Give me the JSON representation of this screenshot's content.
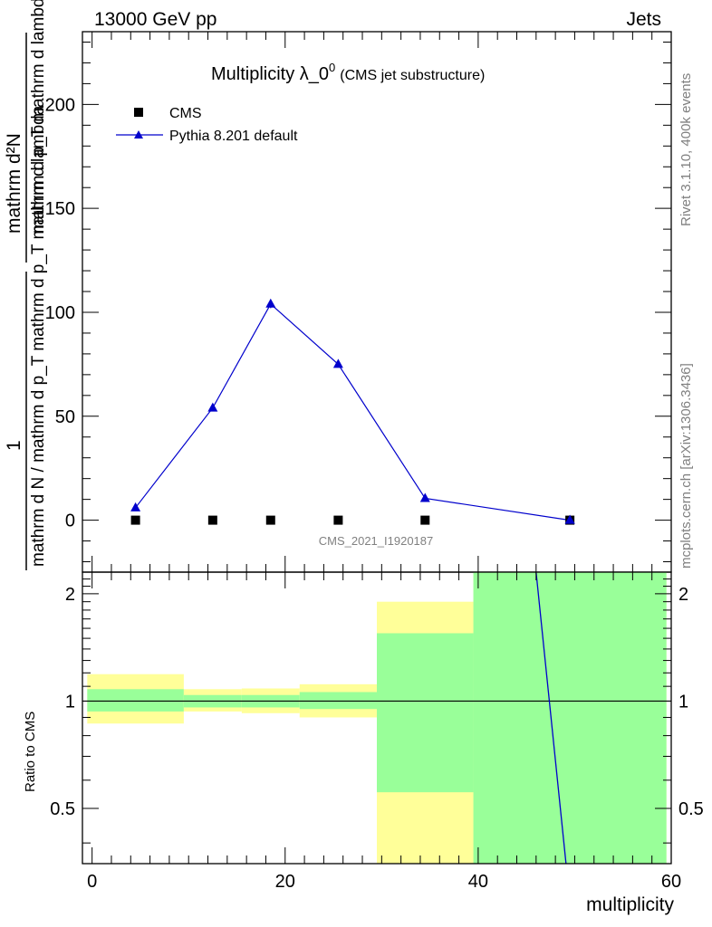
{
  "header": {
    "left": "13000 GeV pp",
    "right": "Jets"
  },
  "side": {
    "rivet": "Rivet 3.1.10,  400k events",
    "mcplots": "mcplots.cern.ch [arXiv:1306.3436]"
  },
  "chart_data": [
    {
      "type": "line",
      "panel": "main",
      "title": "Multiplicity λ_0",
      "title_sup": "0",
      "subtitle": "(CMS jet substructure)",
      "analysis_label": "CMS_2021_I1920187",
      "xlabel": "multiplicity",
      "ylabel_numer": "1",
      "ylabel_denom": "mathrm d N / mathrm d p_T mathrm d p_T mathrm d lambda",
      "ylabel_top": "mathrm d²N",
      "xlim": [
        -1,
        60
      ],
      "ylim": [
        -25,
        235
      ],
      "yticks": [
        0,
        50,
        100,
        150,
        200
      ],
      "legend_position": "top-left",
      "grid": false,
      "series": [
        {
          "name": "CMS",
          "marker": "square",
          "color": "#000000",
          "x": [
            4.5,
            12.5,
            18.5,
            25.5,
            34.5,
            49.5
          ],
          "y": [
            0,
            0,
            0,
            0,
            0,
            0
          ]
        },
        {
          "name": "Pythia 8.201 default",
          "marker": "triangle",
          "color": "#0000cc",
          "x": [
            4.5,
            12.5,
            18.5,
            25.5,
            34.5,
            49.5
          ],
          "y": [
            6,
            54,
            104,
            75,
            10.5,
            0
          ],
          "yerr": [
            0.5,
            0.8,
            2,
            1,
            0.5,
            0
          ]
        }
      ]
    },
    {
      "type": "area",
      "panel": "ratio",
      "ylabel": "Ratio to CMS",
      "xlabel": "multiplicity",
      "xlim": [
        -1,
        60
      ],
      "ylim": [
        0.35,
        2.3
      ],
      "xticks": [
        0,
        20,
        40,
        60
      ],
      "yticks": [
        0.5,
        1,
        2
      ],
      "reference_line": 1,
      "bins": [
        {
          "x0": -0.5,
          "x1": 9.5,
          "yellow": [
            0.865,
            1.19
          ],
          "green": [
            0.935,
            1.08
          ]
        },
        {
          "x0": 9.5,
          "x1": 15.5,
          "yellow": [
            0.935,
            1.08
          ],
          "green": [
            0.96,
            1.04
          ]
        },
        {
          "x0": 15.5,
          "x1": 21.5,
          "yellow": [
            0.925,
            1.085
          ],
          "green": [
            0.96,
            1.04
          ]
        },
        {
          "x0": 21.5,
          "x1": 29.5,
          "yellow": [
            0.9,
            1.115
          ],
          "green": [
            0.95,
            1.06
          ]
        },
        {
          "x0": 29.5,
          "x1": 39.5,
          "yellow": [
            0.35,
            1.9
          ],
          "green": [
            0.555,
            1.55
          ]
        },
        {
          "x0": 39.5,
          "x1": 59.5,
          "yellow": [
            0.35,
            2.3
          ],
          "green": [
            0.35,
            2.3
          ]
        }
      ],
      "series": [
        {
          "name": "Pythia 8.201 default",
          "color": "#0000cc",
          "x": [
            46.0,
            49.1
          ],
          "y": [
            2.3,
            0.35
          ]
        }
      ]
    }
  ]
}
